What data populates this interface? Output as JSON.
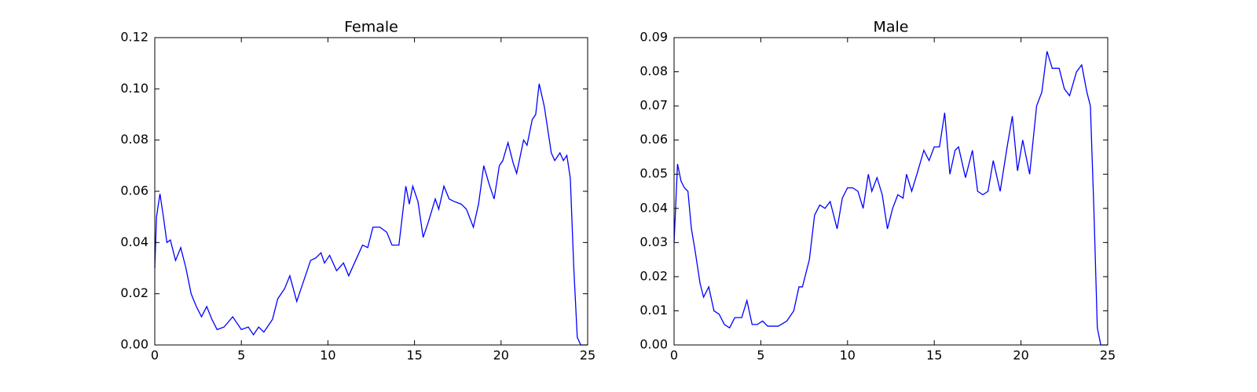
{
  "chart_data": [
    {
      "type": "line",
      "title": "Female",
      "color": "#0000ff",
      "x": [
        0,
        0.1,
        0.3,
        0.5,
        0.7,
        0.9,
        1.2,
        1.5,
        1.8,
        2.1,
        2.4,
        2.7,
        3.0,
        3.3,
        3.6,
        4.0,
        4.5,
        5.0,
        5.4,
        5.7,
        6.0,
        6.3,
        6.8,
        7.1,
        7.5,
        7.8,
        8.2,
        8.6,
        9.0,
        9.3,
        9.6,
        9.8,
        10.1,
        10.5,
        10.9,
        11.2,
        11.6,
        12.0,
        12.3,
        12.6,
        13.0,
        13.4,
        13.7,
        14.1,
        14.5,
        14.7,
        14.9,
        15.2,
        15.5,
        15.8,
        16.2,
        16.4,
        16.7,
        17.0,
        17.3,
        17.7,
        18.0,
        18.4,
        18.7,
        19.0,
        19.3,
        19.6,
        19.9,
        20.1,
        20.4,
        20.7,
        20.9,
        21.3,
        21.5,
        21.8,
        22.0,
        22.2,
        22.5,
        22.9,
        23.1,
        23.4,
        23.6,
        23.8,
        24.0,
        24.2,
        24.4,
        24.6,
        25
      ],
      "values": [
        0.03,
        0.05,
        0.059,
        0.05,
        0.04,
        0.041,
        0.033,
        0.038,
        0.03,
        0.02,
        0.015,
        0.011,
        0.015,
        0.01,
        0.006,
        0.007,
        0.011,
        0.006,
        0.007,
        0.004,
        0.007,
        0.005,
        0.01,
        0.018,
        0.022,
        0.027,
        0.017,
        0.025,
        0.033,
        0.034,
        0.036,
        0.032,
        0.035,
        0.029,
        0.032,
        0.027,
        0.033,
        0.039,
        0.038,
        0.046,
        0.046,
        0.044,
        0.039,
        0.039,
        0.062,
        0.055,
        0.062,
        0.056,
        0.042,
        0.048,
        0.057,
        0.053,
        0.062,
        0.057,
        0.056,
        0.055,
        0.053,
        0.046,
        0.055,
        0.07,
        0.063,
        0.057,
        0.07,
        0.072,
        0.079,
        0.071,
        0.067,
        0.08,
        0.078,
        0.088,
        0.09,
        0.102,
        0.093,
        0.075,
        0.072,
        0.075,
        0.072,
        0.074,
        0.065,
        0.03,
        0.003,
        0,
        0
      ],
      "xlim": [
        0,
        25
      ],
      "xticks": [
        0,
        5,
        10,
        15,
        20,
        25
      ],
      "ylim": [
        0,
        0.12
      ],
      "yticks": [
        {
          "value": 0,
          "label": "0.00"
        },
        0.02,
        0.04,
        0.06,
        0.08,
        {
          "value": 0.1,
          "label": "0.10"
        },
        0.12
      ]
    },
    {
      "type": "line",
      "title": "Male",
      "color": "#0000ff",
      "x": [
        0,
        0.2,
        0.4,
        0.6,
        0.8,
        1.0,
        1.2,
        1.5,
        1.7,
        2.0,
        2.3,
        2.6,
        2.9,
        3.2,
        3.5,
        3.9,
        4.2,
        4.5,
        4.8,
        5.1,
        5.4,
        5.7,
        6.0,
        6.5,
        6.9,
        7.2,
        7.4,
        7.8,
        8.1,
        8.4,
        8.7,
        9.0,
        9.4,
        9.7,
        10.0,
        10.3,
        10.6,
        10.9,
        11.2,
        11.4,
        11.7,
        12.0,
        12.3,
        12.6,
        12.9,
        13.2,
        13.4,
        13.7,
        14.0,
        14.4,
        14.7,
        15.0,
        15.3,
        15.6,
        15.9,
        16.2,
        16.4,
        16.8,
        17.2,
        17.5,
        17.8,
        18.1,
        18.4,
        18.8,
        19.2,
        19.5,
        19.8,
        20.1,
        20.5,
        20.9,
        21.2,
        21.5,
        21.8,
        22.2,
        22.5,
        22.8,
        23.2,
        23.5,
        23.8,
        24.0,
        24.2,
        24.4,
        24.6,
        25
      ],
      "values": [
        0.03,
        0.053,
        0.048,
        0.046,
        0.045,
        0.034,
        0.028,
        0.018,
        0.014,
        0.017,
        0.01,
        0.009,
        0.006,
        0.005,
        0.008,
        0.008,
        0.013,
        0.006,
        0.006,
        0.007,
        0.0055,
        0.0055,
        0.0055,
        0.007,
        0.01,
        0.017,
        0.017,
        0.025,
        0.038,
        0.041,
        0.04,
        0.042,
        0.034,
        0.043,
        0.046,
        0.046,
        0.045,
        0.04,
        0.05,
        0.045,
        0.049,
        0.044,
        0.034,
        0.04,
        0.044,
        0.043,
        0.05,
        0.045,
        0.05,
        0.057,
        0.054,
        0.058,
        0.058,
        0.068,
        0.05,
        0.057,
        0.058,
        0.049,
        0.057,
        0.045,
        0.044,
        0.045,
        0.054,
        0.045,
        0.058,
        0.067,
        0.051,
        0.06,
        0.05,
        0.07,
        0.074,
        0.086,
        0.081,
        0.081,
        0.075,
        0.073,
        0.08,
        0.082,
        0.074,
        0.07,
        0.04,
        0.005,
        0,
        0
      ],
      "xlim": [
        0,
        25
      ],
      "xticks": [
        0,
        5,
        10,
        15,
        20,
        25
      ],
      "ylim": [
        0,
        0.09
      ],
      "yticks": [
        {
          "value": 0,
          "label": "0.00"
        },
        0.01,
        0.02,
        0.03,
        0.04,
        0.05,
        0.06,
        0.07,
        0.08,
        0.09
      ]
    }
  ]
}
